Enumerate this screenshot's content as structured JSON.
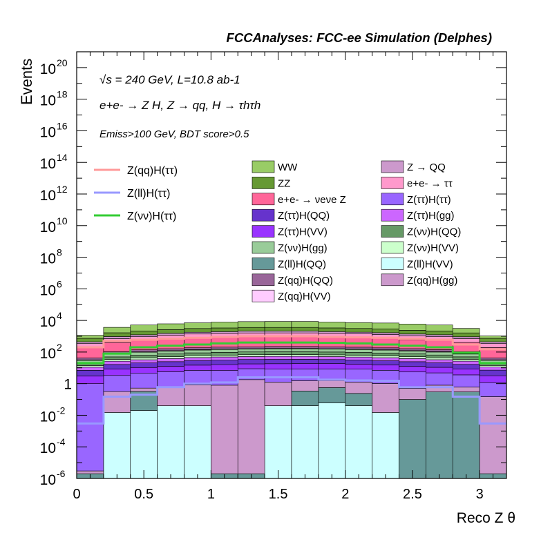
{
  "chart_data": {
    "type": "area",
    "stacked": true,
    "title": "FCCAnalyses: FCC-ee Simulation (Delphes)",
    "annotations": [
      "√s = 240 GeV, L=10.8 ab-1",
      "e+e- → Z H, Z → qq, H → τhτh",
      "Emiss>100 GeV, BDT score>0.5"
    ],
    "xlabel": "Reco Z θ",
    "ylabel": "Events",
    "xlim": [
      0,
      3.2
    ],
    "ylim": [
      1e-06,
      1e+21
    ],
    "log_y": true,
    "bin_edges": [
      0,
      0.2,
      0.4,
      0.6,
      0.8,
      1.0,
      1.2,
      1.4,
      1.6,
      1.8,
      2.0,
      2.2,
      2.4,
      2.6,
      2.8,
      3.0,
      3.2
    ],
    "x_ticks": [
      "0",
      "0.5",
      "1",
      "1.5",
      "2",
      "2.5",
      "3"
    ],
    "y_ticks": [
      {
        "base": "10",
        "exp": "20"
      },
      {
        "base": "10",
        "exp": "18"
      },
      {
        "base": "10",
        "exp": "16"
      },
      {
        "base": "10",
        "exp": "14"
      },
      {
        "base": "10",
        "exp": "12"
      },
      {
        "base": "10",
        "exp": "10"
      },
      {
        "base": "10",
        "exp": "8"
      },
      {
        "base": "10",
        "exp": "6"
      },
      {
        "base": "10",
        "exp": "4"
      },
      {
        "base": "10",
        "exp": "2"
      },
      {
        "base": "1",
        "exp": ""
      },
      {
        "base": "10",
        "exp": "-2"
      },
      {
        "base": "10",
        "exp": "-4"
      },
      {
        "base": "10",
        "exp": "-6"
      }
    ],
    "stack_series": [
      {
        "name": "Z(ll)H(VV)",
        "color": "#ccffff",
        "values": [
          1e-06,
          0.015,
          0.02,
          0.04,
          0.04,
          1e-06,
          1e-06,
          0.04,
          0.04,
          0.06,
          0.04,
          0.015,
          1e-06,
          1e-06,
          1e-06,
          1e-06
        ]
      },
      {
        "name": "Z(ll)H(QQ)",
        "color": "#669999",
        "values": [
          1e-06,
          1e-06,
          0.3,
          1e-06,
          1e-06,
          1e-06,
          1e-06,
          1e-06,
          0.3,
          0.5,
          0.2,
          1e-06,
          0.1,
          0.3,
          0.3,
          1e-06
        ]
      },
      {
        "name": "Z(qq)H(gg)",
        "color": "#cc99cc",
        "values": [
          1e-06,
          0.3,
          0.2,
          0.6,
          0.8,
          0.8,
          1.8,
          1.2,
          1.2,
          1.0,
          1.0,
          1.0,
          0.4,
          0.5,
          0.3,
          0.15
        ]
      },
      {
        "name": "Z(ττ)H(ττ)",
        "color": "#9966ff",
        "values": [
          1,
          3,
          4,
          5,
          6,
          6,
          7,
          7,
          7,
          7,
          7,
          6,
          5,
          4,
          3,
          1
        ]
      },
      {
        "name": "Z(ττ)H(VV)",
        "color": "#9933ff",
        "values": [
          2,
          5,
          6,
          7,
          8,
          9,
          9,
          10,
          10,
          10,
          9,
          8,
          7,
          6,
          5,
          2
        ]
      },
      {
        "name": "Z(ττ)H(QQ)",
        "color": "#6633cc",
        "values": [
          4,
          8,
          10,
          12,
          14,
          15,
          16,
          16,
          16,
          15,
          14,
          13,
          12,
          10,
          8,
          4
        ]
      },
      {
        "name": "Z(ττ)H(gg)",
        "color": "#cc66ff",
        "values": [
          4,
          10,
          12,
          14,
          16,
          18,
          18,
          19,
          19,
          18,
          17,
          16,
          14,
          12,
          10,
          4
        ]
      },
      {
        "name": "Z(νν)H(VV)",
        "color": "#ccffcc",
        "values": [
          3,
          8,
          10,
          12,
          14,
          15,
          16,
          16,
          16,
          15,
          14,
          13,
          12,
          10,
          8,
          3
        ]
      },
      {
        "name": "Z(νν)H(QQ)",
        "color": "#669966",
        "values": [
          6,
          15,
          20,
          25,
          30,
          32,
          34,
          35,
          35,
          34,
          32,
          30,
          26,
          22,
          15,
          6
        ]
      },
      {
        "name": "Z(νν)H(gg)",
        "color": "#99cc99",
        "values": [
          10,
          25,
          35,
          40,
          45,
          50,
          52,
          55,
          55,
          52,
          50,
          45,
          40,
          35,
          25,
          10
        ]
      },
      {
        "name": "Z(qq)H(VV)",
        "color": "#ffccff",
        "values": [
          2,
          5,
          6,
          7,
          8,
          9,
          9,
          10,
          10,
          9,
          9,
          8,
          7,
          6,
          5,
          2
        ]
      },
      {
        "name": "Z(qq)H(QQ)",
        "color": "#996699",
        "values": [
          10,
          25,
          35,
          40,
          45,
          50,
          52,
          55,
          55,
          52,
          50,
          45,
          40,
          35,
          25,
          10
        ]
      },
      {
        "name": "e+e- → νeνe Z",
        "color": "#ff6699",
        "values": [
          150,
          300,
          400,
          500,
          600,
          650,
          700,
          700,
          700,
          650,
          600,
          550,
          450,
          400,
          300,
          150
        ]
      },
      {
        "name": "e+e- → ττ",
        "color": "#ff99cc",
        "values": [
          150,
          300,
          400,
          500,
          600,
          650,
          700,
          700,
          700,
          650,
          600,
          550,
          450,
          400,
          300,
          150
        ]
      },
      {
        "name": "Z → QQ",
        "color": "#cc99cc",
        "values": [
          100,
          250,
          300,
          350,
          400,
          450,
          500,
          500,
          500,
          450,
          400,
          380,
          320,
          300,
          220,
          100
        ]
      },
      {
        "name": "ZZ",
        "color": "#669933",
        "values": [
          300,
          700,
          900,
          1100,
          1300,
          1400,
          1500,
          1500,
          1500,
          1400,
          1300,
          1200,
          1000,
          900,
          700,
          300
        ]
      },
      {
        "name": "WW",
        "color": "#99cc66",
        "values": [
          400,
          2000,
          3000,
          3500,
          4000,
          4500,
          4800,
          5000,
          5000,
          4500,
          4200,
          4000,
          3500,
          3000,
          1500,
          300
        ]
      }
    ],
    "line_series": [
      {
        "name": "Z(qq)H(ττ)",
        "color": "#ff9999",
        "values": [
          200,
          500,
          600,
          700,
          800,
          900,
          1000,
          1000,
          1000,
          900,
          850,
          800,
          700,
          600,
          300,
          150
        ]
      },
      {
        "name": "Z(ll)H(ττ)",
        "color": "#9999ff",
        "values": [
          0.003,
          0.15,
          0.2,
          0.6,
          1.0,
          1.2,
          2.5,
          2.5,
          2.5,
          1.8,
          1.6,
          1.5,
          0.6,
          0.6,
          0.15,
          0.003
        ]
      },
      {
        "name": "Z(νν)H(ττ)",
        "color": "#33cc33",
        "values": [
          20,
          80,
          200,
          250,
          300,
          350,
          400,
          400,
          400,
          380,
          350,
          300,
          250,
          200,
          90,
          20
        ]
      }
    ],
    "legend_lines": [
      "Z(qq)H(ττ)",
      "Z(ll)H(ττ)",
      "Z(νν)H(ττ)"
    ],
    "legend_stack": [
      {
        "name": "WW",
        "color": "#99cc66"
      },
      {
        "name": "Z → QQ",
        "color": "#cc99cc"
      },
      {
        "name": "ZZ",
        "color": "#669933"
      },
      {
        "name": "e+e- → ττ",
        "color": "#ff99cc"
      },
      {
        "name": "e+e- → νeνe Z",
        "color": "#ff6699"
      },
      {
        "name": "Z(ττ)H(ττ)",
        "color": "#9966ff"
      },
      {
        "name": "Z(ττ)H(QQ)",
        "color": "#6633cc"
      },
      {
        "name": "Z(ττ)H(gg)",
        "color": "#cc66ff"
      },
      {
        "name": "Z(ττ)H(VV)",
        "color": "#9933ff"
      },
      {
        "name": "Z(νν)H(QQ)",
        "color": "#669966"
      },
      {
        "name": "Z(νν)H(gg)",
        "color": "#99cc99"
      },
      {
        "name": "Z(νν)H(VV)",
        "color": "#ccffcc"
      },
      {
        "name": "Z(ll)H(QQ)",
        "color": "#669999"
      },
      {
        "name": "Z(ll)H(VV)",
        "color": "#ccffff"
      },
      {
        "name": "Z(qq)H(QQ)",
        "color": "#996699"
      },
      {
        "name": "Z(qq)H(gg)",
        "color": "#cc99cc"
      },
      {
        "name": "Z(qq)H(VV)",
        "color": "#ffccff"
      }
    ],
    "grid": false,
    "legend_placement": "top"
  }
}
